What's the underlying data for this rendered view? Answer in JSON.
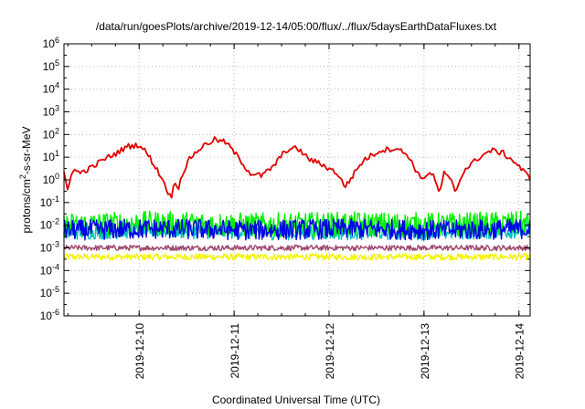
{
  "chart_data": {
    "type": "line",
    "title": "/data/run/goesPlots/archive/2019-12-14/05:00/flux/../flux/5daysEarthDataFluxes.txt",
    "xlabel": "Coordinated Universal Time (UTC)",
    "ylabel": {
      "prefix": "protons/cm",
      "sup": "2",
      "suffix": "-s-sr-MeV"
    },
    "yscale": "log",
    "ylim_exp": [
      -6,
      6
    ],
    "y_ticks": [
      {
        "base": "10",
        "exp": "-6"
      },
      {
        "base": "10",
        "exp": "-5"
      },
      {
        "base": "10",
        "exp": "-4"
      },
      {
        "base": "10",
        "exp": "-3"
      },
      {
        "base": "10",
        "exp": "-2"
      },
      {
        "base": "10",
        "exp": "-1"
      },
      {
        "base": "10",
        "exp": "0"
      },
      {
        "base": "10",
        "exp": "1"
      },
      {
        "base": "10",
        "exp": "2"
      },
      {
        "base": "10",
        "exp": "3"
      },
      {
        "base": "10",
        "exp": "4"
      },
      {
        "base": "10",
        "exp": "5"
      },
      {
        "base": "10",
        "exp": "6"
      }
    ],
    "x_start": "2019-12-09 05:00",
    "x_end": "2019-12-14 02:50",
    "x_ticks": [
      "2019-12-10",
      "2019-12-11",
      "2019-12-12",
      "2019-12-13",
      "2019-12-14"
    ],
    "grid": true,
    "colors": {
      "red": "#e00000",
      "green": "#00f000",
      "cyan": "#00c0c0",
      "blue": "#0000e8",
      "purple": "#a04870",
      "yellow": "#f4f400"
    },
    "series": [
      {
        "color": "red",
        "x": [
          "2019-12-09 05:00",
          "2019-12-09 06:00",
          "2019-12-09 07:00",
          "2019-12-09 09:00",
          "2019-12-09 12:00",
          "2019-12-09 15:00",
          "2019-12-09 18:00",
          "2019-12-09 21:00",
          "2019-12-10 00:00",
          "2019-12-10 02:00",
          "2019-12-10 04:00",
          "2019-12-10 06:00",
          "2019-12-10 08:00",
          "2019-12-10 09:00",
          "2019-12-10 10:00",
          "2019-12-10 11:00",
          "2019-12-10 13:00",
          "2019-12-10 16:00",
          "2019-12-10 19:00",
          "2019-12-10 22:00",
          "2019-12-11 01:00",
          "2019-12-11 04:00",
          "2019-12-11 07:00",
          "2019-12-11 10:00",
          "2019-12-11 13:00",
          "2019-12-11 16:00",
          "2019-12-11 19:00",
          "2019-12-11 22:00",
          "2019-12-12 02:00",
          "2019-12-12 04:00",
          "2019-12-12 06:00",
          "2019-12-12 07:00",
          "2019-12-12 09:00",
          "2019-12-12 13:00",
          "2019-12-12 17:00",
          "2019-12-12 20:00",
          "2019-12-12 23:00",
          "2019-12-13 02:00",
          "2019-12-13 04:00",
          "2019-12-13 05:00",
          "2019-12-13 07:00",
          "2019-12-13 08:00",
          "2019-12-13 10:00",
          "2019-12-13 14:00",
          "2019-12-13 17:00",
          "2019-12-13 20:00",
          "2019-12-13 23:00",
          "2019-12-14 01:00",
          "2019-12-14 02:50"
        ],
        "y": [
          1.8,
          0.3,
          3,
          2,
          3.5,
          8,
          14,
          30,
          35,
          15,
          4,
          1,
          0.15,
          0.8,
          0.5,
          2,
          10,
          30,
          60,
          45,
          10,
          2,
          1.5,
          4,
          20,
          25,
          8,
          5,
          2,
          0.5,
          1.5,
          3,
          8,
          20,
          25,
          12,
          1.2,
          2,
          0.25,
          2,
          0.8,
          0.3,
          2.5,
          10,
          20,
          15,
          6,
          2.5,
          1.2
        ]
      },
      {
        "color": "green",
        "x": [
          "2019-12-09 05:00",
          "2019-12-10 05:00",
          "2019-12-11 05:00",
          "2019-12-12 05:00",
          "2019-12-13 05:00",
          "2019-12-14 02:50"
        ],
        "y": [
          0.01,
          0.012,
          0.01,
          0.011,
          0.01,
          0.012
        ]
      },
      {
        "color": "cyan",
        "x": [
          "2019-12-09 05:00",
          "2019-12-10 05:00",
          "2019-12-11 05:00",
          "2019-12-12 05:00",
          "2019-12-13 05:00",
          "2019-12-14 02:50"
        ],
        "y": [
          0.005,
          0.006,
          0.005,
          0.005,
          0.005,
          0.006
        ]
      },
      {
        "color": "blue",
        "x": [
          "2019-12-09 05:00",
          "2019-12-10 05:00",
          "2019-12-11 05:00",
          "2019-12-12 05:00",
          "2019-12-13 05:00",
          "2019-12-14 02:50"
        ],
        "y": [
          0.006,
          0.007,
          0.006,
          0.007,
          0.006,
          0.007
        ]
      },
      {
        "color": "purple",
        "x": [
          "2019-12-09 05:00",
          "2019-12-10 05:00",
          "2019-12-11 05:00",
          "2019-12-12 05:00",
          "2019-12-13 05:00",
          "2019-12-14 02:50"
        ],
        "y": [
          0.001,
          0.001,
          0.001,
          0.001,
          0.001,
          0.001
        ]
      },
      {
        "color": "yellow",
        "x": [
          "2019-12-09 05:00",
          "2019-12-10 05:00",
          "2019-12-11 05:00",
          "2019-12-12 05:00",
          "2019-12-13 05:00",
          "2019-12-14 02:50"
        ],
        "y": [
          0.0004,
          0.0004,
          0.0004,
          0.0004,
          0.0004,
          0.0004
        ]
      }
    ]
  }
}
